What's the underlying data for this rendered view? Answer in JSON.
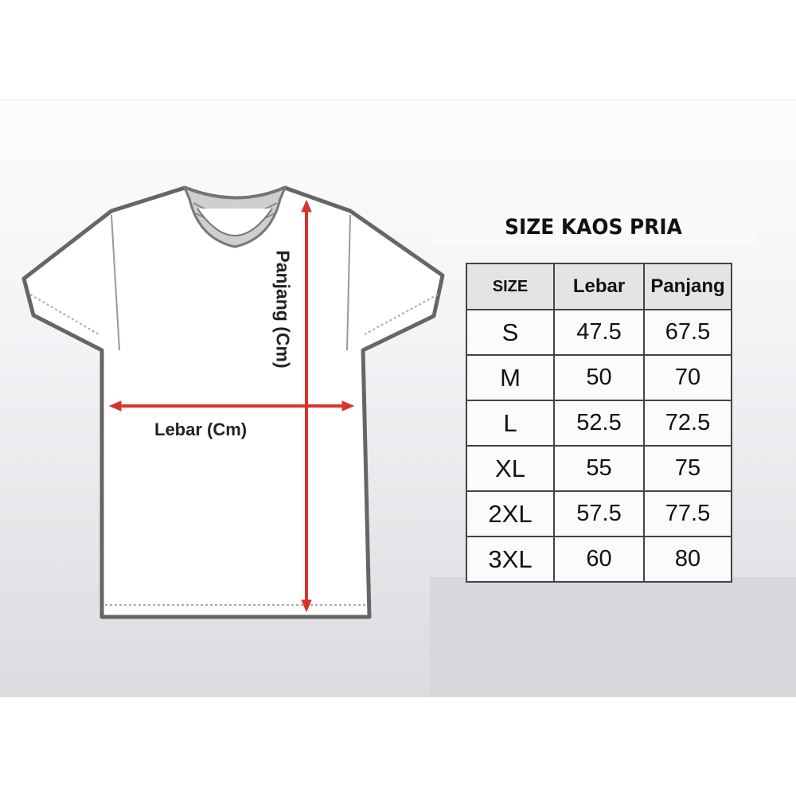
{
  "title": "SIZE KAOS PRIA",
  "labels": {
    "length": "Panjang (Cm)",
    "width": "Lebar (Cm)"
  },
  "table": {
    "headers": [
      "SIZE",
      "Lebar",
      "Panjang"
    ],
    "rows": [
      {
        "size": "S",
        "lebar": "47.5",
        "panjang": "67.5"
      },
      {
        "size": "M",
        "lebar": "50",
        "panjang": "70"
      },
      {
        "size": "L",
        "lebar": "52.5",
        "panjang": "72.5"
      },
      {
        "size": "XL",
        "lebar": "55",
        "panjang": "75"
      },
      {
        "size": "2XL",
        "lebar": "57.5",
        "panjang": "77.5"
      },
      {
        "size": "3XL",
        "lebar": "60",
        "panjang": "80"
      }
    ]
  },
  "colors": {
    "arrow": "#d9342b",
    "shirt_outline": "#6b6b6b",
    "collar": "#c8c8c8"
  }
}
